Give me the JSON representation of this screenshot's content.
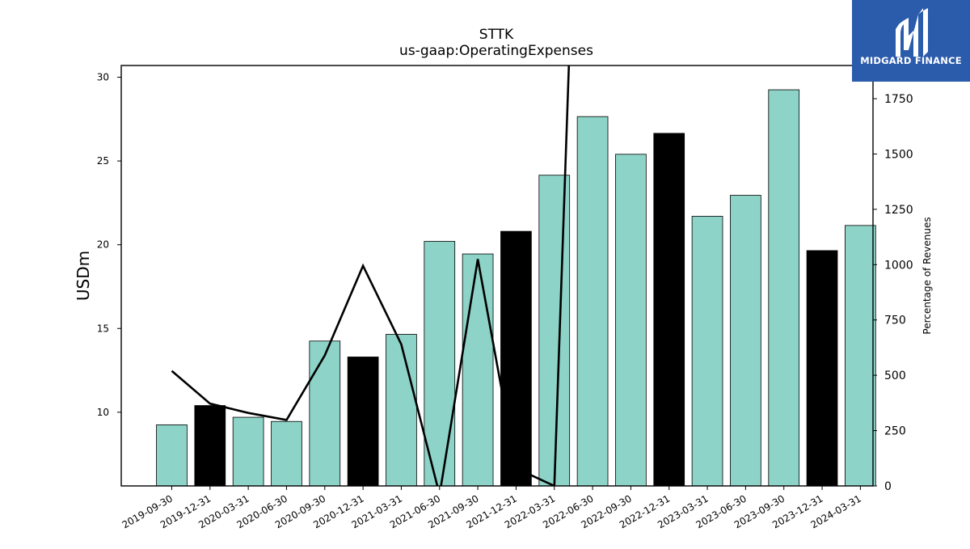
{
  "chart_data": {
    "type": "bar",
    "title": "STTK",
    "subtitle": "us-gaap:OperatingExpenses",
    "ylabel": "USDm",
    "y2label": "Percentage of Revenues",
    "ylim": [
      5.6,
      30.7
    ],
    "y2lim": [
      0,
      1900
    ],
    "yticks": [
      10,
      15,
      20,
      25,
      30
    ],
    "y2ticks": [
      0,
      250,
      500,
      750,
      1000,
      1250,
      1500,
      1750
    ],
    "categories": [
      "2019-09-30",
      "2019-12-31",
      "2020-03-31",
      "2020-06-30",
      "2020-09-30",
      "2020-12-31",
      "2021-03-31",
      "2021-06-30",
      "2021-09-30",
      "2021-12-31",
      "2022-03-31",
      "2022-06-30",
      "2022-09-30",
      "2022-12-31",
      "2023-03-31",
      "2023-06-30",
      "2023-09-30",
      "2023-12-31",
      "2024-03-31"
    ],
    "values": [
      9.25,
      10.4,
      9.7,
      9.45,
      14.25,
      13.3,
      14.65,
      20.2,
      19.45,
      20.8,
      24.15,
      27.65,
      25.4,
      26.65,
      21.7,
      22.95,
      29.25,
      19.65,
      21.15
    ],
    "bar_colors": [
      "#8dd3c7",
      "#000000",
      "#8dd3c7",
      "#8dd3c7",
      "#8dd3c7",
      "#000000",
      "#8dd3c7",
      "#8dd3c7",
      "#8dd3c7",
      "#000000",
      "#8dd3c7",
      "#8dd3c7",
      "#8dd3c7",
      "#000000",
      "#8dd3c7",
      "#8dd3c7",
      "#8dd3c7",
      "#000000",
      "#8dd3c7"
    ],
    "line_series": {
      "axis": "right",
      "values": [
        520,
        372,
        330,
        298,
        590,
        995,
        640,
        -40,
        1025,
        80,
        0,
        5000,
        null,
        null,
        null,
        null,
        null,
        null,
        null
      ]
    },
    "grid": false
  },
  "logo": {
    "text": "MIDGARD FINANCE",
    "bg_color": "#2b5bab"
  }
}
